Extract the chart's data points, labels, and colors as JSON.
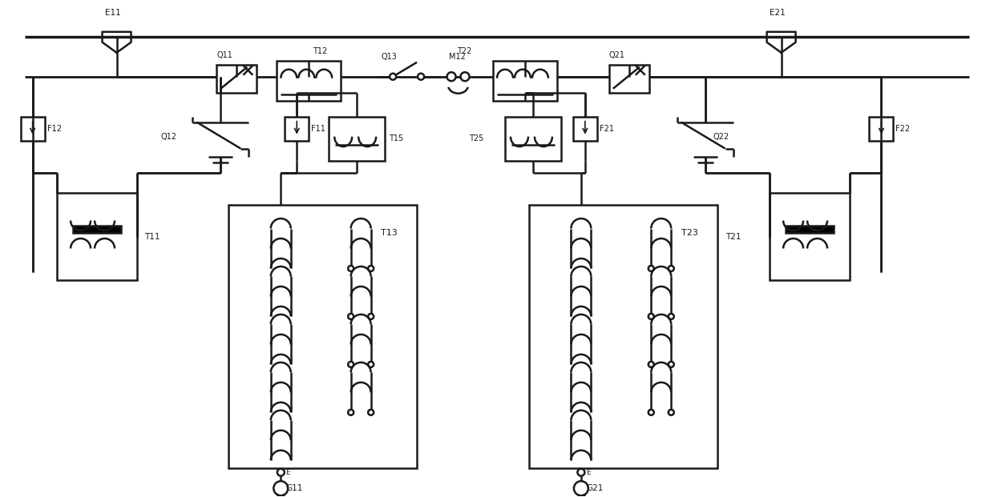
{
  "bg": "#ffffff",
  "lc": "#1a1a1a",
  "lw": 1.8,
  "fw": 12.4,
  "fh": 6.21,
  "top_bus_y": 57.5,
  "second_bus_y": 52.5,
  "xlim": [
    0,
    124
  ],
  "ylim": [
    0,
    62
  ]
}
